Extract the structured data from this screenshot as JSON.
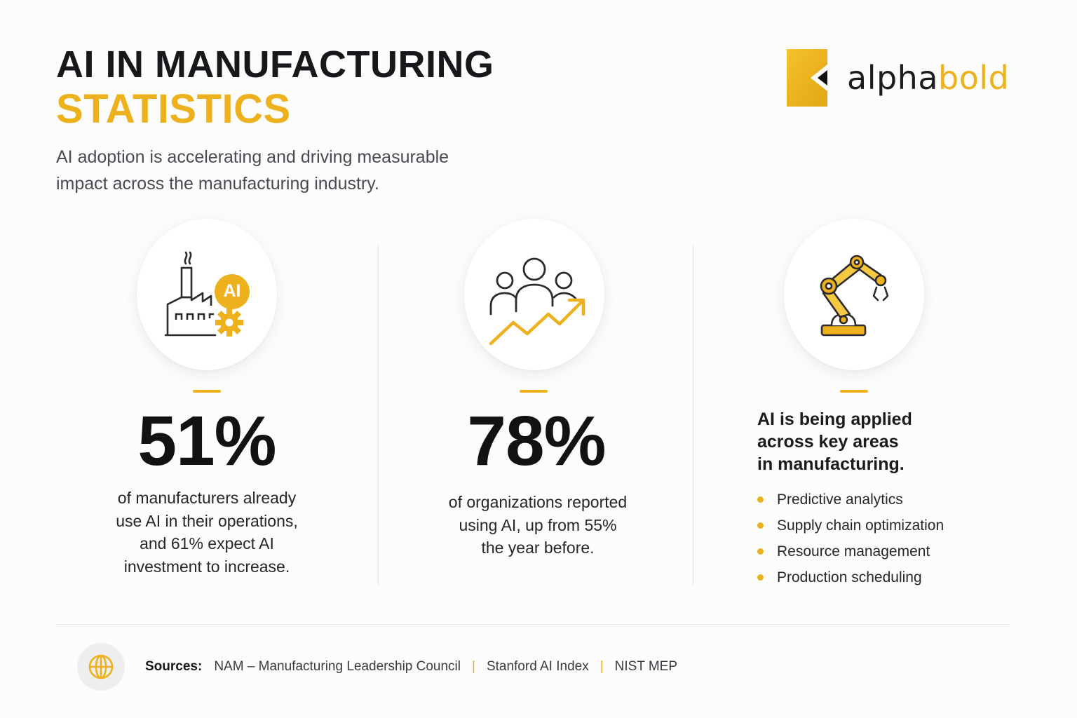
{
  "header": {
    "title_line1": "AI IN MANUFACTURING",
    "title_line2": "STATISTICS",
    "subtitle_lines": [
      "AI adoption is accelerating and driving measurable",
      "impact across the manufacturing industry."
    ]
  },
  "logo": {
    "text_dark": "alpha",
    "text_accent": "bold"
  },
  "columns": [
    {
      "icon": "factory-ai-gear-icon",
      "icon_badge": "AI",
      "stat": "51%",
      "desc_lines": [
        "of manufacturers already",
        "use AI in their operations,",
        "and 61% expect AI",
        "investment to increase."
      ]
    },
    {
      "icon": "people-growth-arrow-icon",
      "stat": "78%",
      "desc_lines": [
        "of organizations reported",
        "using AI, up from 55%",
        "the year before."
      ]
    },
    {
      "icon": "robotic-arm-icon",
      "heading_lines": [
        "AI is being applied",
        "across key areas",
        "in manufacturing."
      ],
      "items": [
        "Predictive analytics",
        "Supply chain optimization",
        "Resource management",
        "Production scheduling"
      ]
    }
  ],
  "footer": {
    "icon": "globe-icon",
    "sources_label": "Sources:",
    "sources": [
      "NAM – Manufacturing Leadership Council",
      "Stanford AI Index",
      "NIST MEP"
    ],
    "separator": "|"
  },
  "colors": {
    "accent": "#eeb11e",
    "text_dark": "#18181c",
    "text_muted": "#4a4a52",
    "background": "#fcfcfc"
  }
}
